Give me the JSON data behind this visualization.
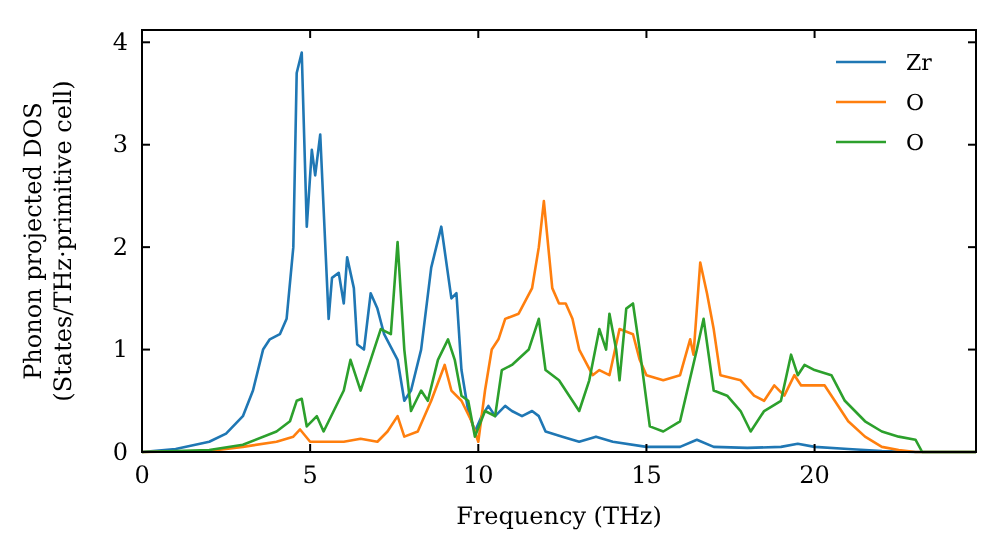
{
  "chart_data": {
    "type": "line",
    "xlabel": "Frequency (THz)",
    "ylabel": "Phonon projected DOS\n(States/THz·primitive cell)",
    "xlim": [
      0,
      24.8
    ],
    "ylim": [
      0,
      4.12
    ],
    "xticks": [
      0,
      5,
      10,
      15,
      20
    ],
    "yticks": [
      0,
      1,
      2,
      3,
      4
    ],
    "grid": false,
    "legend": "top right",
    "line_style": "solid",
    "series": [
      {
        "name": "Zr",
        "color": "#1f77b4",
        "x": [
          0,
          1,
          2,
          2.5,
          3,
          3.3,
          3.6,
          3.8,
          4.1,
          4.3,
          4.5,
          4.6,
          4.75,
          4.9,
          5.05,
          5.15,
          5.3,
          5.55,
          5.65,
          5.85,
          6.0,
          6.1,
          6.3,
          6.4,
          6.6,
          6.8,
          7.0,
          7.2,
          7.6,
          7.8,
          8.0,
          8.3,
          8.6,
          8.9,
          9.2,
          9.35,
          9.5,
          9.7,
          9.9,
          10.1,
          10.3,
          10.5,
          10.8,
          11.0,
          11.3,
          11.6,
          11.8,
          12.0,
          12.5,
          13.0,
          13.5,
          14.0,
          15,
          16,
          16.5,
          17,
          18,
          19,
          19.5,
          20,
          21,
          22,
          23,
          24.8
        ],
        "values": [
          0,
          0.03,
          0.1,
          0.18,
          0.35,
          0.6,
          1.0,
          1.1,
          1.15,
          1.3,
          2.0,
          3.7,
          3.9,
          2.2,
          2.95,
          2.7,
          3.1,
          1.3,
          1.7,
          1.75,
          1.45,
          1.9,
          1.6,
          1.05,
          1.0,
          1.55,
          1.4,
          1.15,
          0.9,
          0.5,
          0.6,
          1.0,
          1.8,
          2.2,
          1.5,
          1.55,
          0.8,
          0.4,
          0.2,
          0.35,
          0.45,
          0.35,
          0.45,
          0.4,
          0.35,
          0.4,
          0.35,
          0.2,
          0.15,
          0.1,
          0.15,
          0.1,
          0.05,
          0.05,
          0.12,
          0.05,
          0.04,
          0.05,
          0.08,
          0.05,
          0.03,
          0.01,
          0,
          0
        ]
      },
      {
        "name": "O",
        "color": "#ff7f0e",
        "x": [
          0,
          2,
          3,
          4,
          4.5,
          4.7,
          5,
          5.5,
          6,
          6.5,
          7,
          7.3,
          7.6,
          7.8,
          8.2,
          8.6,
          9.0,
          9.2,
          9.5,
          9.8,
          10.0,
          10.2,
          10.4,
          10.6,
          10.8,
          11.2,
          11.6,
          11.8,
          11.95,
          12.2,
          12.4,
          12.6,
          12.8,
          13.0,
          13.4,
          13.6,
          13.9,
          14.2,
          14.6,
          14.8,
          15.0,
          15.5,
          16.0,
          16.3,
          16.4,
          16.6,
          16.8,
          17.0,
          17.2,
          17.8,
          18.2,
          18.5,
          18.8,
          19.1,
          19.4,
          19.6,
          20.3,
          20.6,
          21,
          21.5,
          22,
          22.5,
          23,
          24.8
        ],
        "values": [
          0,
          0.01,
          0.05,
          0.1,
          0.15,
          0.22,
          0.1,
          0.1,
          0.1,
          0.13,
          0.1,
          0.2,
          0.35,
          0.15,
          0.2,
          0.5,
          0.85,
          0.6,
          0.5,
          0.3,
          0.1,
          0.6,
          1.0,
          1.1,
          1.3,
          1.35,
          1.6,
          2.0,
          2.45,
          1.6,
          1.45,
          1.45,
          1.3,
          1.0,
          0.75,
          0.8,
          0.75,
          1.2,
          1.15,
          0.9,
          0.75,
          0.7,
          0.75,
          1.1,
          0.95,
          1.85,
          1.55,
          1.2,
          0.75,
          0.7,
          0.55,
          0.5,
          0.65,
          0.55,
          0.75,
          0.65,
          0.65,
          0.5,
          0.3,
          0.15,
          0.05,
          0.02,
          0,
          0
        ]
      },
      {
        "name": "O",
        "color": "#2ca02c",
        "x": [
          0,
          2,
          3,
          4,
          4.4,
          4.6,
          4.75,
          4.9,
          5.2,
          5.4,
          5.7,
          6.0,
          6.2,
          6.5,
          6.9,
          7.1,
          7.4,
          7.6,
          7.8,
          8.0,
          8.3,
          8.5,
          8.8,
          9.1,
          9.3,
          9.5,
          9.7,
          9.9,
          10.2,
          10.5,
          10.7,
          11.0,
          11.5,
          11.8,
          12.0,
          12.4,
          12.8,
          13.0,
          13.3,
          13.6,
          13.8,
          13.9,
          14.1,
          14.2,
          14.4,
          14.6,
          14.8,
          15.1,
          15.5,
          16.0,
          16.5,
          16.7,
          17.0,
          17.4,
          17.8,
          18.1,
          18.5,
          19.0,
          19.3,
          19.5,
          19.7,
          20.0,
          20.5,
          20.9,
          21.5,
          22,
          22.5,
          23.0,
          23.2,
          24.8
        ],
        "values": [
          0,
          0.02,
          0.07,
          0.2,
          0.3,
          0.5,
          0.52,
          0.25,
          0.35,
          0.2,
          0.4,
          0.6,
          0.9,
          0.6,
          1.0,
          1.2,
          1.15,
          2.05,
          1.0,
          0.4,
          0.6,
          0.5,
          0.9,
          1.1,
          0.9,
          0.55,
          0.5,
          0.15,
          0.4,
          0.35,
          0.8,
          0.85,
          1.0,
          1.3,
          0.8,
          0.7,
          0.5,
          0.4,
          0.7,
          1.2,
          1.0,
          1.35,
          1.0,
          0.7,
          1.4,
          1.45,
          1.0,
          0.25,
          0.2,
          0.3,
          1.0,
          1.3,
          0.6,
          0.55,
          0.4,
          0.2,
          0.4,
          0.5,
          0.95,
          0.75,
          0.85,
          0.8,
          0.75,
          0.5,
          0.3,
          0.2,
          0.15,
          0.12,
          0,
          0
        ]
      }
    ]
  }
}
